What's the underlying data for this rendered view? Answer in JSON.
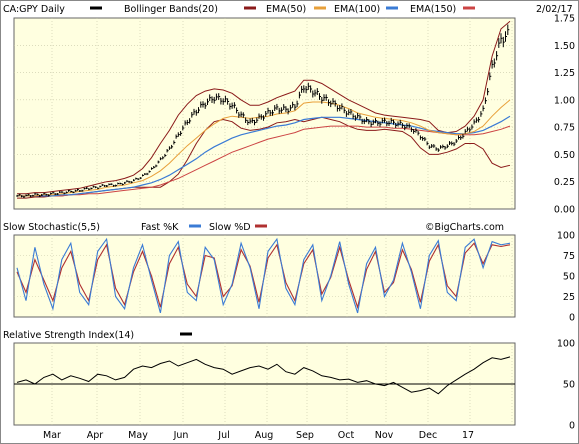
{
  "chart_data": [
    {
      "type": "line",
      "panel": "price",
      "symbol_label": "CA:GPY Daily",
      "date_label": "2/02/17",
      "legend": [
        {
          "label": "Bollinger Bands(20)",
          "color": "#8b1a1a"
        },
        {
          "label": "EMA(50)",
          "color": "#8b1a1a"
        },
        {
          "label": "EMA(100)",
          "color": "#e8a03a"
        },
        {
          "label": "EMA(150)",
          "color": "#3a7bd5"
        },
        {
          "label": "",
          "color": "#cc4444"
        }
      ],
      "symbol_swatch_color": "#000000",
      "ylim": [
        0,
        1.75
      ],
      "yticks": [
        "0.00",
        "0.25",
        "0.50",
        "0.75",
        "1.00",
        "1.25",
        "1.50",
        "1.75"
      ],
      "price": [
        0.12,
        0.12,
        0.13,
        0.13,
        0.14,
        0.15,
        0.16,
        0.17,
        0.19,
        0.2,
        0.22,
        0.22,
        0.24,
        0.26,
        0.3,
        0.36,
        0.45,
        0.55,
        0.68,
        0.8,
        0.9,
        0.97,
        1.02,
        1.0,
        0.95,
        0.86,
        0.79,
        0.83,
        0.88,
        0.92,
        0.91,
        0.94,
        1.12,
        1.08,
        1.02,
        0.98,
        0.93,
        0.88,
        0.84,
        0.8,
        0.79,
        0.8,
        0.79,
        0.77,
        0.74,
        0.67,
        0.58,
        0.55,
        0.58,
        0.62,
        0.7,
        0.78,
        0.9,
        1.3,
        1.55,
        1.62
      ],
      "ema50": [
        0.12,
        0.12,
        0.12,
        0.13,
        0.13,
        0.14,
        0.15,
        0.16,
        0.17,
        0.18,
        0.2,
        0.21,
        0.22,
        0.24,
        0.26,
        0.3,
        0.35,
        0.42,
        0.5,
        0.58,
        0.65,
        0.72,
        0.78,
        0.83,
        0.85,
        0.84,
        0.83,
        0.84,
        0.85,
        0.87,
        0.88,
        0.9,
        0.97,
        0.98,
        0.98,
        0.97,
        0.95,
        0.92,
        0.88,
        0.86,
        0.84,
        0.83,
        0.82,
        0.81,
        0.79,
        0.76,
        0.72,
        0.7,
        0.69,
        0.68,
        0.69,
        0.71,
        0.76,
        0.85,
        0.93,
        1.0
      ],
      "ema100": [
        0.12,
        0.12,
        0.12,
        0.12,
        0.12,
        0.13,
        0.13,
        0.14,
        0.15,
        0.16,
        0.17,
        0.18,
        0.19,
        0.2,
        0.22,
        0.24,
        0.27,
        0.31,
        0.36,
        0.41,
        0.46,
        0.52,
        0.57,
        0.61,
        0.65,
        0.68,
        0.7,
        0.72,
        0.74,
        0.76,
        0.77,
        0.79,
        0.82,
        0.83,
        0.84,
        0.84,
        0.84,
        0.83,
        0.82,
        0.81,
        0.8,
        0.79,
        0.78,
        0.77,
        0.76,
        0.74,
        0.72,
        0.71,
        0.7,
        0.69,
        0.69,
        0.7,
        0.72,
        0.76,
        0.8,
        0.85
      ],
      "ema150": [
        0.12,
        0.12,
        0.12,
        0.12,
        0.12,
        0.12,
        0.13,
        0.13,
        0.14,
        0.14,
        0.15,
        0.16,
        0.17,
        0.18,
        0.19,
        0.2,
        0.22,
        0.25,
        0.28,
        0.32,
        0.36,
        0.4,
        0.44,
        0.48,
        0.52,
        0.55,
        0.58,
        0.61,
        0.64,
        0.66,
        0.68,
        0.7,
        0.73,
        0.74,
        0.75,
        0.76,
        0.76,
        0.76,
        0.76,
        0.75,
        0.75,
        0.75,
        0.74,
        0.74,
        0.73,
        0.72,
        0.71,
        0.7,
        0.69,
        0.68,
        0.68,
        0.68,
        0.69,
        0.71,
        0.73,
        0.76
      ],
      "bb_upper": [
        0.14,
        0.14,
        0.15,
        0.15,
        0.16,
        0.17,
        0.18,
        0.19,
        0.21,
        0.23,
        0.25,
        0.26,
        0.28,
        0.31,
        0.37,
        0.47,
        0.6,
        0.72,
        0.86,
        0.96,
        1.04,
        1.08,
        1.1,
        1.09,
        1.06,
        1.0,
        0.95,
        0.95,
        0.98,
        1.02,
        1.05,
        1.08,
        1.18,
        1.18,
        1.15,
        1.1,
        1.05,
        1.0,
        0.96,
        0.92,
        0.88,
        0.86,
        0.85,
        0.84,
        0.83,
        0.82,
        0.8,
        0.72,
        0.7,
        0.71,
        0.76,
        0.85,
        1.0,
        1.4,
        1.65,
        1.72
      ],
      "bb_lower": [
        0.1,
        0.1,
        0.11,
        0.11,
        0.12,
        0.12,
        0.13,
        0.14,
        0.15,
        0.16,
        0.17,
        0.18,
        0.19,
        0.2,
        0.2,
        0.2,
        0.2,
        0.25,
        0.32,
        0.45,
        0.6,
        0.72,
        0.8,
        0.82,
        0.8,
        0.74,
        0.72,
        0.73,
        0.75,
        0.79,
        0.8,
        0.82,
        0.8,
        0.82,
        0.84,
        0.82,
        0.8,
        0.76,
        0.73,
        0.72,
        0.72,
        0.73,
        0.72,
        0.71,
        0.66,
        0.56,
        0.5,
        0.5,
        0.52,
        0.55,
        0.6,
        0.6,
        0.55,
        0.42,
        0.38,
        0.4
      ]
    },
    {
      "type": "line",
      "panel": "stochastic",
      "title": "Slow Stochastic(5,5)",
      "legend": [
        {
          "label": "Fast %K",
          "color": "#3a7bd5"
        },
        {
          "label": "Slow %D",
          "color": "#b03030"
        }
      ],
      "watermark": "©BigCharts.com",
      "ylim": [
        0,
        100
      ],
      "yticks": [
        "0",
        "25",
        "50",
        "75",
        "100"
      ],
      "fast_k": [
        60,
        20,
        85,
        40,
        10,
        70,
        90,
        30,
        15,
        80,
        95,
        25,
        10,
        60,
        88,
        45,
        5,
        75,
        92,
        30,
        20,
        85,
        70,
        15,
        40,
        90,
        60,
        10,
        80,
        95,
        35,
        15,
        70,
        88,
        20,
        50,
        92,
        40,
        5,
        65,
        85,
        25,
        45,
        90,
        55,
        10,
        75,
        93,
        30,
        20,
        85,
        95,
        60,
        92,
        88,
        90
      ],
      "slow_d": [
        55,
        30,
        70,
        45,
        20,
        60,
        80,
        40,
        20,
        70,
        88,
        35,
        15,
        55,
        80,
        50,
        12,
        65,
        85,
        40,
        25,
        75,
        72,
        25,
        38,
        82,
        62,
        18,
        72,
        88,
        42,
        20,
        65,
        82,
        28,
        48,
        85,
        45,
        12,
        58,
        80,
        30,
        42,
        82,
        58,
        18,
        68,
        88,
        38,
        25,
        78,
        90,
        65,
        88,
        86,
        88
      ]
    },
    {
      "type": "line",
      "panel": "rsi",
      "title": "Relative Strength Index(14)",
      "legend_color": "#000000",
      "ylim": [
        0,
        100
      ],
      "yticks": [
        "0",
        "50",
        "100"
      ],
      "reference_level": 50,
      "rsi": [
        52,
        55,
        50,
        58,
        62,
        55,
        60,
        57,
        53,
        62,
        60,
        55,
        58,
        68,
        72,
        70,
        75,
        78,
        72,
        76,
        80,
        74,
        70,
        68,
        62,
        66,
        70,
        72,
        68,
        74,
        65,
        62,
        70,
        66,
        60,
        58,
        55,
        56,
        52,
        54,
        50,
        48,
        52,
        46,
        40,
        42,
        45,
        38,
        48,
        55,
        62,
        68,
        76,
        82,
        80,
        83
      ]
    }
  ],
  "x_axis": {
    "month_labels": [
      "Mar",
      "Apr",
      "May",
      "Jun",
      "Jul",
      "Aug",
      "Sep",
      "Oct",
      "Nov",
      "Dec",
      "17"
    ]
  }
}
